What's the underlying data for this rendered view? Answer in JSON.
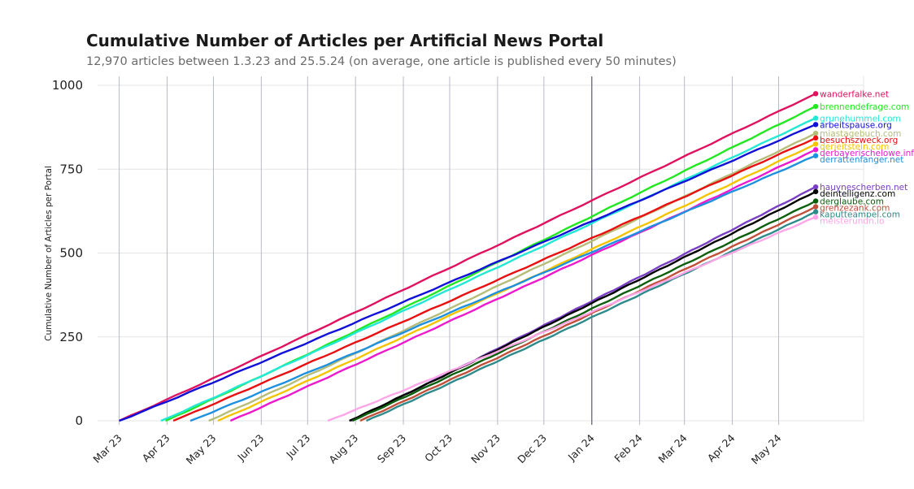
{
  "chart_data": {
    "type": "line",
    "title": "Cumulative Number of Articles per Artificial News Portal",
    "subtitle": "12,970 articles between 1.3.23 and 25.5.24 (on average, one article is published every 50 minutes)",
    "xlabel": "",
    "ylabel": "Cumulative Number of Articles per Portal",
    "x_ticks": [
      "Mar 23",
      "Apr 23",
      "May 23",
      "Jun 23",
      "Jul 23",
      "Aug 23",
      "Sep 23",
      "Oct 23",
      "Nov 23",
      "Dec 23",
      "Jan 24",
      "Feb 24",
      "Mar 24",
      "Apr 24",
      "May 24"
    ],
    "y_ticks": [
      "0",
      "250",
      "500",
      "750",
      "1000"
    ],
    "ylim": [
      0,
      1000
    ],
    "xlim": [
      "2023-02-15",
      "2024-06-25"
    ],
    "grid": true,
    "x_end": "2024-05-25",
    "series": [
      {
        "name": "wanderfalke.net",
        "color": "#e0115f",
        "start": "2023-03-01",
        "end": 975
      },
      {
        "name": "brennendefrage.com",
        "color": "#22e822",
        "start": "2023-03-31",
        "end": 937
      },
      {
        "name": "grunehummel.com",
        "color": "#22e8d5",
        "start": "2023-03-28",
        "end": 902
      },
      {
        "name": "arbeitspause.org",
        "color": "#1010d8",
        "start": "2023-03-01",
        "end": 883
      },
      {
        "name": "miastagebuch.com",
        "color": "#b5bd78",
        "start": "2023-04-28",
        "end": 857
      },
      {
        "name": "besuchszweck.org",
        "color": "#e81010",
        "start": "2023-04-05",
        "end": 843
      },
      {
        "name": "derjeitstein.com",
        "color": "#f5c400",
        "start": "2023-05-04",
        "end": 825
      },
      {
        "name": "derbayerischelowe.info",
        "color": "#ee18cc",
        "start": "2023-05-12",
        "end": 808
      },
      {
        "name": "derrattenfanger.net",
        "color": "#1e90e0",
        "start": "2023-04-16",
        "end": 790
      },
      {
        "name": "hauynescherben.net",
        "color": "#7a3ec6",
        "start": "2023-07-29",
        "end": 697
      },
      {
        "name": "deintelligenz.com",
        "color": "#000000",
        "start": "2023-07-28",
        "end": 683
      },
      {
        "name": "derglaube.com",
        "color": "#0b5e0b",
        "start": "2023-07-30",
        "end": 655
      },
      {
        "name": "grenzezank.com",
        "color": "#c0503a",
        "start": "2023-08-04",
        "end": 638
      },
      {
        "name": "kaputteampel.com",
        "color": "#2e8b8b",
        "start": "2023-08-08",
        "end": 623
      },
      {
        "name": "meisterundn.io",
        "color": "#ffa6e8",
        "start": "2023-07-14",
        "end": 607
      }
    ]
  }
}
